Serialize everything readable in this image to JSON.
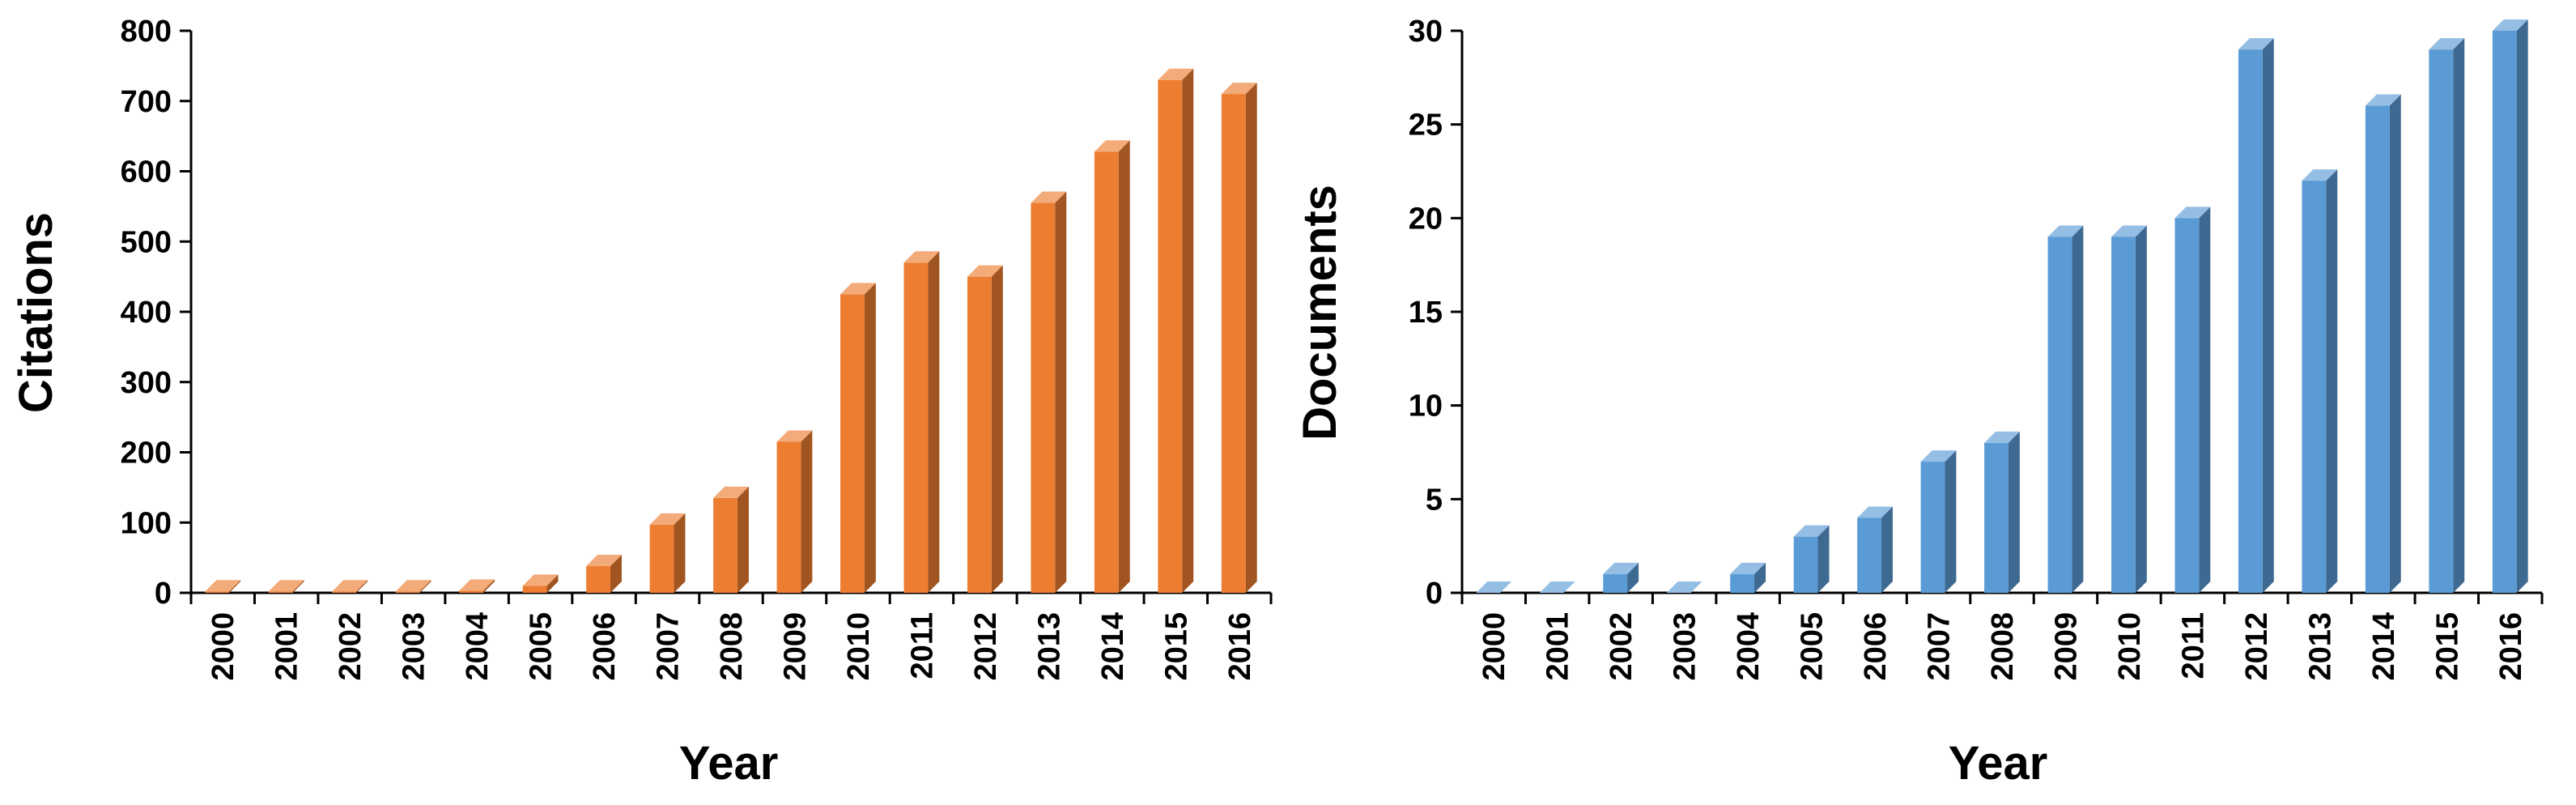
{
  "chart_data": [
    {
      "type": "bar",
      "title": "",
      "xlabel": "Year",
      "ylabel": "Citations",
      "ylim": [
        0,
        800
      ],
      "yticks": [
        "0",
        "100",
        "200",
        "300",
        "400",
        "500",
        "600",
        "700",
        "800"
      ],
      "grid": false,
      "legend": "none",
      "bar_color": "#ed7d31",
      "categories": [
        "2000",
        "2001",
        "2002",
        "2003",
        "2004",
        "2005",
        "2006",
        "2007",
        "2008",
        "2009",
        "2010",
        "2011",
        "2012",
        "2013",
        "2014",
        "2015",
        "2016"
      ],
      "values": [
        2,
        2,
        2,
        2,
        3,
        10,
        38,
        97,
        135,
        215,
        425,
        470,
        450,
        555,
        628,
        730,
        710
      ]
    },
    {
      "type": "bar",
      "title": "",
      "xlabel": "Year",
      "ylabel": "Documents",
      "ylim": [
        0,
        30
      ],
      "yticks": [
        "0",
        "5",
        "10",
        "15",
        "20",
        "25",
        "30"
      ],
      "grid": false,
      "legend": "none",
      "bar_color": "#5b9bd5",
      "categories": [
        "2000",
        "2001",
        "2002",
        "2003",
        "2004",
        "2005",
        "2006",
        "2007",
        "2008",
        "2009",
        "2010",
        "2011",
        "2012",
        "2013",
        "2014",
        "2015",
        "2016"
      ],
      "values": [
        0,
        0,
        1,
        0,
        1,
        3,
        4,
        7,
        8,
        19,
        19,
        20,
        29,
        22,
        26,
        29,
        30
      ]
    }
  ]
}
